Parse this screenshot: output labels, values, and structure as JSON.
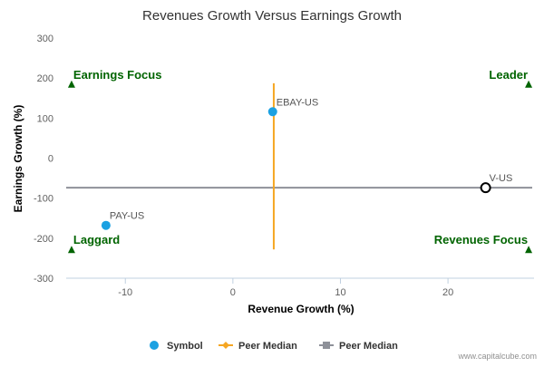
{
  "chart_data": {
    "type": "scatter",
    "title": "Revenues Growth Versus Earnings Growth",
    "xlabel": "Revenue Growth (%)",
    "ylabel": "Earnings Growth (%)",
    "xlim": [
      -15.5,
      28
    ],
    "ylim": [
      -300,
      300
    ],
    "x_ticks": [
      {
        "value": -10,
        "label": "-10"
      },
      {
        "value": 0,
        "label": "0"
      },
      {
        "value": 10,
        "label": "10"
      },
      {
        "value": 20,
        "label": "20"
      }
    ],
    "y_ticks": [
      {
        "value": 300,
        "label": "300"
      },
      {
        "value": 200,
        "label": "200"
      },
      {
        "value": 100,
        "label": "100"
      },
      {
        "value": 0,
        "label": "0"
      },
      {
        "value": -100,
        "label": "-100"
      },
      {
        "value": -200,
        "label": "-200"
      },
      {
        "value": -300,
        "label": "-300"
      }
    ],
    "grid": false,
    "points": [
      {
        "label": "EBAY-US",
        "x": 3.7,
        "y": 116,
        "style": "filled",
        "color": "#1ba1e2"
      },
      {
        "label": "PAY-US",
        "x": -11.8,
        "y": -168,
        "style": "filled",
        "color": "#1ba1e2"
      },
      {
        "label": "V-US",
        "x": 23.5,
        "y": -74,
        "style": "hollow",
        "color": "#000000"
      }
    ],
    "peer_median_x": {
      "value": 3.8,
      "y_from": -228,
      "y_to": 187,
      "color": "#f5a623"
    },
    "peer_median_y": {
      "value": -74,
      "color": "#8e9199"
    },
    "quadrant_labels": [
      {
        "text": "Earnings Focus",
        "x": -15,
        "y": 185,
        "position": "top-left"
      },
      {
        "text": "Leader",
        "x": 27.5,
        "y": 185,
        "position": "top-right"
      },
      {
        "text": "Laggard",
        "x": -15,
        "y": -228,
        "position": "bottom-left"
      },
      {
        "text": "Revenues Focus",
        "x": 27.5,
        "y": -228,
        "position": "bottom-right"
      }
    ],
    "quadrant_color": "#006400",
    "legend": {
      "placement": "bottom",
      "items": [
        {
          "label": "Symbol",
          "marker": "circle",
          "color": "#1ba1e2"
        },
        {
          "label": "Peer Median",
          "marker": "line-diamond",
          "color": "#f5a623"
        },
        {
          "label": "Peer Median",
          "marker": "line-square",
          "color": "#8e9199"
        }
      ]
    },
    "credit": "www.capitalcube.com"
  }
}
